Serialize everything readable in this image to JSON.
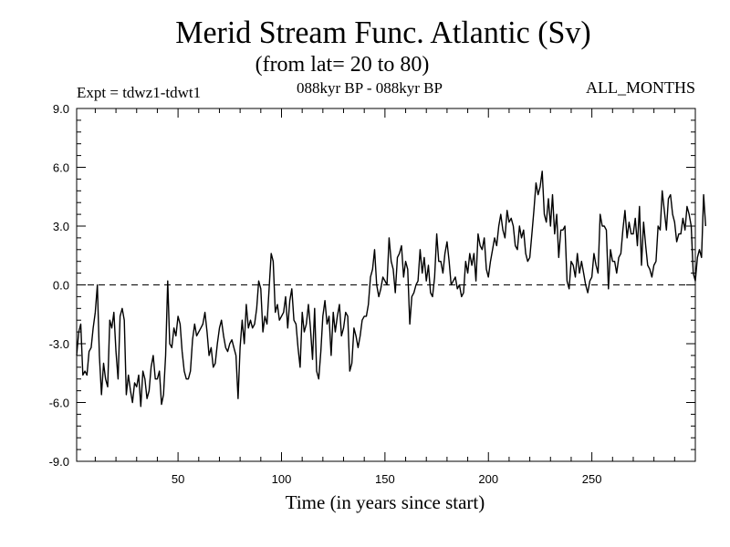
{
  "header": {
    "title": "Merid Stream Func. Atlantic (Sv)",
    "subtitle": "(from lat= 20 to 80)",
    "experiment": "Expt = tdwz1-tdwt1",
    "period": "088kyr BP - 088kyr BP",
    "months": "ALL_MONTHS"
  },
  "chart_data": {
    "type": "line",
    "xlabel": "Time (in years since start)",
    "ylabel": "",
    "xlim": [
      1,
      300
    ],
    "ylim": [
      -9,
      9
    ],
    "x_ticks": [
      50,
      100,
      150,
      200,
      250
    ],
    "y_ticks": [
      -9,
      -6,
      -3,
      0,
      3,
      6,
      9
    ],
    "y_tick_labels": [
      "-9.0",
      "-6.0",
      "-3.0",
      "0.0",
      "3.0",
      "6.0",
      "9.0"
    ],
    "reference_line": {
      "y": 0,
      "style": "dashed"
    },
    "grid": false,
    "series": [
      {
        "x_start": 1,
        "x_step": 1,
        "values": [
          -3.6,
          -2.4,
          -2.0,
          -4.6,
          -4.4,
          -4.6,
          -3.4,
          -3.2,
          -2.2,
          -1.4,
          0.0,
          -3.6,
          -5.6,
          -4.0,
          -4.8,
          -5.2,
          -1.8,
          -2.2,
          -1.4,
          -3.4,
          -4.8,
          -1.6,
          -1.2,
          -1.8,
          -5.6,
          -4.6,
          -5.4,
          -6.0,
          -5.0,
          -5.2,
          -4.6,
          -6.2,
          -4.4,
          -4.8,
          -5.8,
          -5.4,
          -4.2,
          -3.6,
          -4.8,
          -4.8,
          -4.4,
          -6.1,
          -5.6,
          -3.6,
          0.2,
          -3.0,
          -3.2,
          -2.2,
          -2.6,
          -1.6,
          -2.0,
          -3.4,
          -4.4,
          -4.8,
          -4.8,
          -4.4,
          -2.8,
          -2.0,
          -2.6,
          -2.4,
          -2.2,
          -2.0,
          -1.4,
          -2.4,
          -3.6,
          -3.2,
          -4.2,
          -4.0,
          -3.0,
          -2.2,
          -1.8,
          -2.6,
          -3.2,
          -3.4,
          -3.0,
          -2.8,
          -3.2,
          -3.6,
          -5.8,
          -3.2,
          -1.8,
          -3.0,
          -1.0,
          -2.2,
          -1.8,
          -2.2,
          -2.0,
          -1.2,
          0.2,
          -0.2,
          -2.4,
          -1.6,
          -2.0,
          -0.2,
          1.6,
          1.2,
          -1.4,
          -1.0,
          -1.8,
          -1.6,
          -1.4,
          -0.6,
          -2.2,
          -0.8,
          -0.2,
          -1.8,
          -2.0,
          -3.2,
          -4.2,
          -1.4,
          -2.4,
          -2.0,
          -1.0,
          -2.2,
          -3.8,
          -1.2,
          -4.4,
          -4.8,
          -3.4,
          -1.6,
          -0.8,
          -2.0,
          -1.6,
          -3.6,
          -1.4,
          -2.4,
          -1.6,
          -1.0,
          -2.6,
          -2.2,
          -1.4,
          -1.6,
          -4.4,
          -4.0,
          -2.2,
          -2.6,
          -3.2,
          -2.6,
          -1.8,
          -1.6,
          -1.6,
          -1.0,
          0.4,
          0.8,
          1.8,
          0.0,
          -0.6,
          -0.2,
          0.4,
          0.2,
          0.0,
          2.4,
          1.2,
          0.8,
          -0.4,
          1.4,
          1.6,
          2.0,
          0.4,
          1.2,
          0.8,
          -2.0,
          -0.6,
          -0.4,
          0.0,
          0.2,
          1.8,
          0.6,
          1.4,
          0.2,
          1.0,
          -0.4,
          -0.6,
          0.4,
          2.6,
          1.2,
          1.2,
          0.6,
          1.6,
          2.2,
          1.2,
          0.0,
          0.2,
          0.4,
          -0.2,
          0.0,
          -0.6,
          -0.4,
          1.2,
          0.6,
          1.6,
          1.0,
          1.6,
          0.2,
          2.6,
          2.0,
          1.8,
          2.4,
          0.8,
          0.4,
          1.2,
          1.8,
          2.4,
          2.0,
          3.0,
          3.6,
          2.8,
          2.4,
          3.8,
          3.2,
          3.4,
          3.0,
          2.0,
          1.8,
          3.0,
          2.4,
          2.8,
          1.6,
          1.2,
          1.4,
          2.6,
          3.8,
          5.2,
          4.6,
          5.0,
          5.8,
          3.6,
          3.2,
          4.4,
          3.0,
          4.6,
          2.6,
          3.6,
          1.4,
          2.8,
          2.8,
          3.0,
          0.2,
          -0.2,
          1.2,
          1.0,
          0.4,
          1.6,
          0.6,
          1.2,
          0.6,
          0.0,
          -0.4,
          0.2,
          0.4,
          1.6,
          1.0,
          0.6,
          3.6,
          3.0,
          3.0,
          2.8,
          -0.2,
          1.8,
          1.2,
          1.2,
          0.6,
          1.4,
          1.6,
          2.8,
          3.8,
          2.4,
          3.2,
          2.6,
          2.6,
          3.4,
          2.0,
          4.0,
          1.0,
          3.2,
          2.0,
          1.0,
          0.8,
          0.4,
          1.0,
          1.2,
          3.0,
          2.8,
          4.8,
          3.8,
          2.8,
          4.4,
          4.6,
          3.6,
          3.2,
          2.2,
          2.6,
          2.6,
          3.4,
          2.8,
          4.0,
          3.6,
          3.0,
          0.6,
          0.2,
          1.4,
          1.8,
          1.4,
          4.6,
          3.0
        ]
      }
    ]
  }
}
